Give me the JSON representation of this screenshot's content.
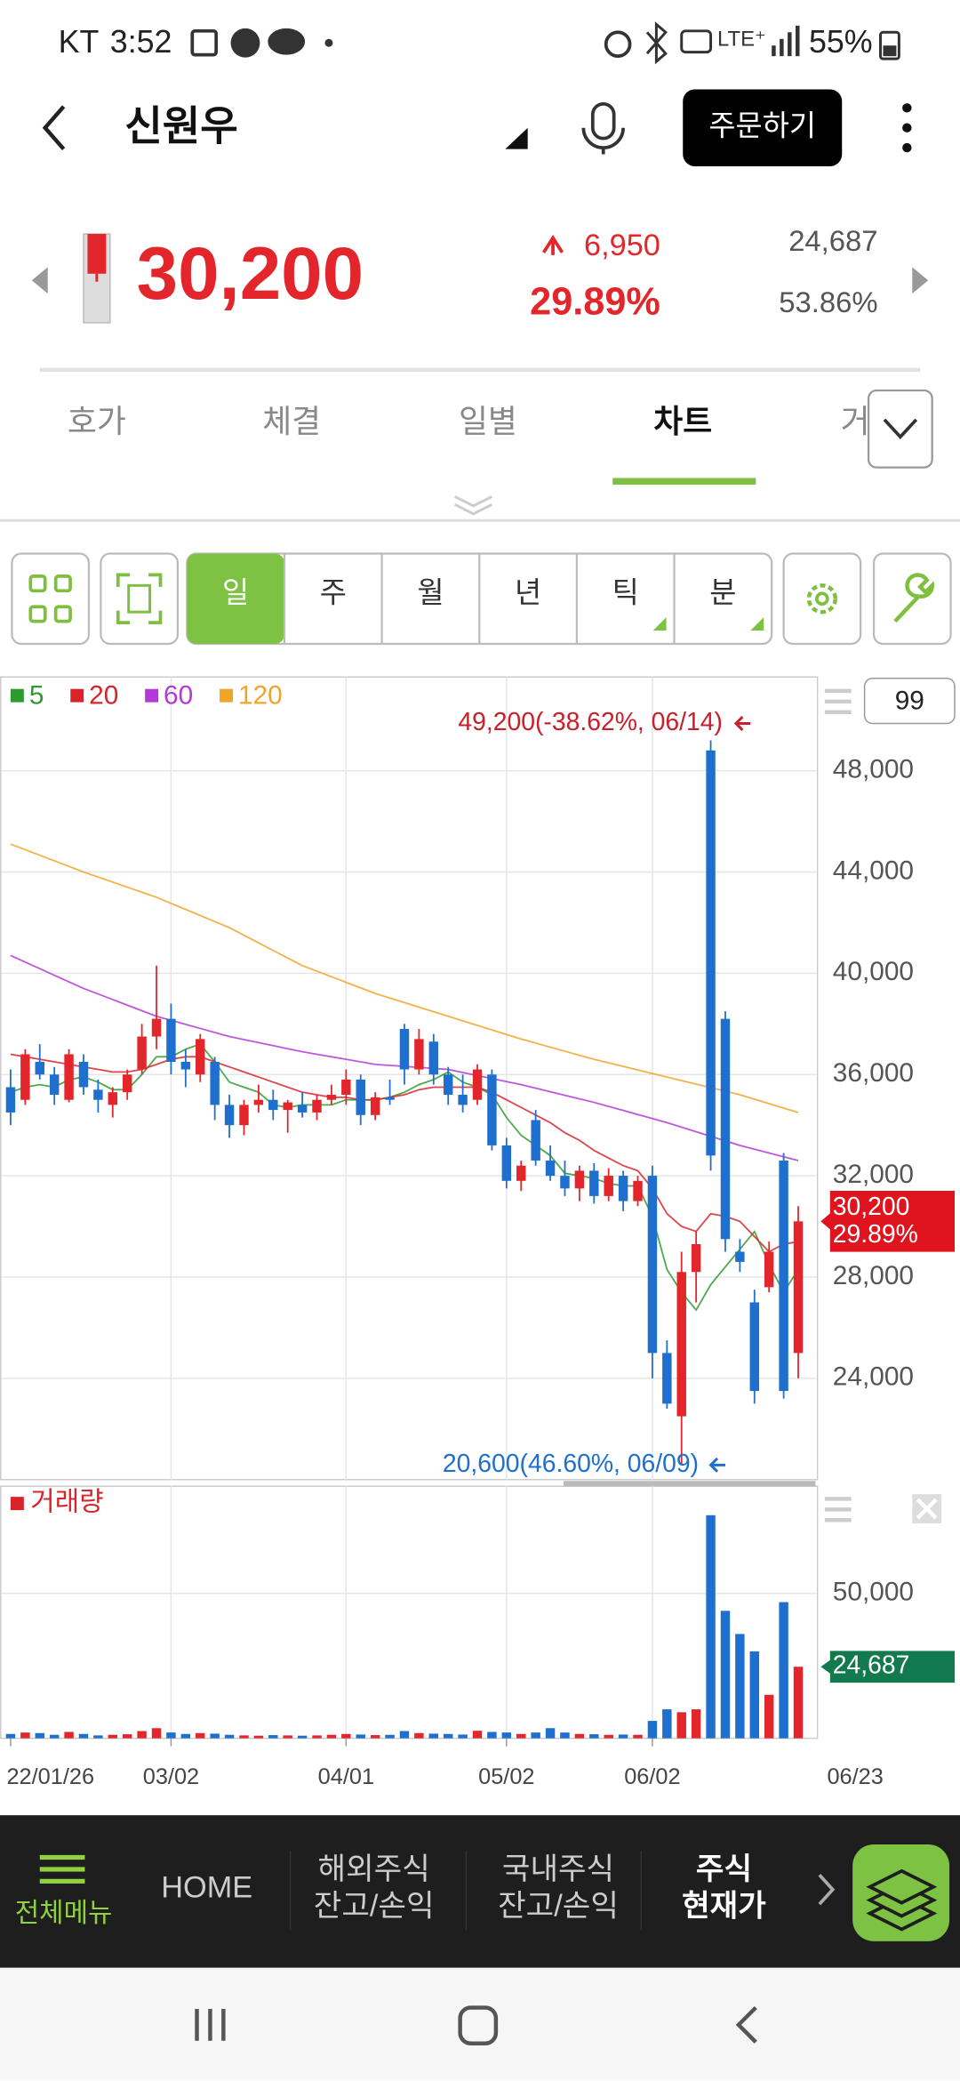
{
  "status_bar": {
    "carrier": "KT",
    "time": "3:52",
    "battery": "55%"
  },
  "header": {
    "title": "신원우",
    "order_button": "주문하기"
  },
  "quote": {
    "price": "30,200",
    "change": "6,950",
    "change_rate": "29.89%",
    "volume": "24,687",
    "volume_ratio": "53.86%"
  },
  "tabs": [
    "호가",
    "체결",
    "일별",
    "차트",
    "거"
  ],
  "periods": [
    "일",
    "주",
    "월",
    "년",
    "틱",
    "분"
  ],
  "chart_data": {
    "type": "candlestick",
    "period_count": "99",
    "max_annotation": "49,200(-38.62%, 06/14)",
    "min_annotation": "20,600(46.60%, 06/09)",
    "last_price_label": {
      "price": "30,200",
      "rate": "29.89%"
    },
    "ylim": [
      20000,
      51700
    ],
    "yticks": [
      {
        "value": 24000,
        "label": "24,000"
      },
      {
        "value": 28000,
        "label": "28,000"
      },
      {
        "value": 32000,
        "label": "32,000"
      },
      {
        "value": 36000,
        "label": "36,000"
      },
      {
        "value": 40000,
        "label": "40,000"
      },
      {
        "value": 44000,
        "label": "44,000"
      },
      {
        "value": 48000,
        "label": "48,000"
      }
    ],
    "categories": [
      "22/01/26",
      null,
      null,
      null,
      null,
      null,
      null,
      null,
      null,
      null,
      null,
      "03/02",
      null,
      null,
      null,
      null,
      null,
      null,
      null,
      null,
      null,
      null,
      null,
      "04/01",
      null,
      null,
      null,
      null,
      null,
      null,
      null,
      null,
      null,
      null,
      "05/02",
      null,
      null,
      null,
      null,
      null,
      null,
      null,
      null,
      null,
      "06/02",
      null,
      null,
      null,
      null,
      null,
      null,
      null,
      null,
      null,
      null
    ],
    "x_end_label": "06/23",
    "candles": [
      [
        35500,
        36200,
        34000,
        34500
      ],
      [
        35000,
        37000,
        34800,
        36800
      ],
      [
        36500,
        37200,
        35800,
        36000
      ],
      [
        36000,
        36300,
        34800,
        35200
      ],
      [
        35000,
        37000,
        34900,
        36800
      ],
      [
        36500,
        36800,
        35200,
        35500
      ],
      [
        35400,
        35800,
        34500,
        35000
      ],
      [
        34800,
        35500,
        34300,
        35300
      ],
      [
        35300,
        36200,
        35000,
        36000
      ],
      [
        36200,
        38000,
        36000,
        37500
      ],
      [
        37500,
        40300,
        37000,
        38200
      ],
      [
        38200,
        38800,
        36000,
        36500
      ],
      [
        36500,
        37000,
        35500,
        36200
      ],
      [
        36000,
        37600,
        35700,
        37400
      ],
      [
        36500,
        36700,
        34200,
        34800
      ],
      [
        34800,
        35200,
        33500,
        34000
      ],
      [
        34000,
        35000,
        33600,
        34800
      ],
      [
        34800,
        35600,
        34500,
        35000
      ],
      [
        35000,
        35400,
        34200,
        34600
      ],
      [
        34600,
        35000,
        33700,
        34900
      ],
      [
        34800,
        35300,
        34300,
        34500
      ],
      [
        34500,
        35200,
        34200,
        35000
      ],
      [
        35000,
        35600,
        34800,
        35200
      ],
      [
        35200,
        36200,
        34800,
        35800
      ],
      [
        35800,
        36000,
        34000,
        34400
      ],
      [
        34400,
        35300,
        34200,
        35100
      ],
      [
        35100,
        35800,
        34800,
        35000
      ],
      [
        37800,
        38000,
        35600,
        36200
      ],
      [
        36200,
        37800,
        36000,
        37400
      ],
      [
        37300,
        37600,
        35600,
        36000
      ],
      [
        36000,
        36300,
        34800,
        35200
      ],
      [
        35200,
        36000,
        34500,
        34800
      ],
      [
        35000,
        36400,
        34800,
        36200
      ],
      [
        36000,
        36200,
        33000,
        33200
      ],
      [
        33200,
        33500,
        31500,
        31800
      ],
      [
        31800,
        32600,
        31400,
        32400
      ],
      [
        34200,
        34600,
        32400,
        32600
      ],
      [
        32600,
        33200,
        31800,
        32000
      ],
      [
        32000,
        32600,
        31200,
        31500
      ],
      [
        31500,
        32400,
        31000,
        32200
      ],
      [
        32200,
        32500,
        30900,
        31200
      ],
      [
        31200,
        32300,
        31000,
        32000
      ],
      [
        32000,
        32200,
        30600,
        31000
      ],
      [
        31000,
        32000,
        30800,
        31800
      ],
      [
        32000,
        32400,
        24000,
        25000
      ],
      [
        25000,
        25500,
        22800,
        23000
      ],
      [
        22500,
        29000,
        20600,
        28200
      ],
      [
        28200,
        29800,
        27000,
        29300
      ],
      [
        48800,
        49200,
        32200,
        32800
      ],
      [
        38200,
        38500,
        29000,
        29500
      ],
      [
        29000,
        29500,
        28200,
        28600
      ],
      [
        27000,
        27500,
        23000,
        23500
      ],
      [
        27600,
        29400,
        27400,
        29000
      ],
      [
        32600,
        32900,
        23200,
        23500
      ],
      [
        25000,
        30800,
        24000,
        30200
      ]
    ],
    "up_color": "#e3262b",
    "down_color": "#1f6fce",
    "moving_averages": [
      {
        "name": "5",
        "color": "#2e9a2e",
        "values": [
          35300,
          35500,
          35600,
          35500,
          35800,
          35900,
          35700,
          35400,
          35400,
          36000,
          36700,
          36700,
          37000,
          37200,
          36500,
          35700,
          35500,
          35300,
          34800,
          34700,
          34800,
          34800,
          34800,
          35000,
          35000,
          35000,
          35100,
          35300,
          35600,
          35800,
          36100,
          35700,
          35500,
          35200,
          34300,
          33600,
          33200,
          32800,
          32100,
          32000,
          31900,
          31700,
          31600,
          31600,
          30400,
          28300,
          27400,
          26700,
          27700,
          28400,
          29100,
          29800,
          28500,
          27400,
          28300
        ]
      },
      {
        "name": "20",
        "color": "#d8232a",
        "values": [
          36800,
          36700,
          36600,
          36500,
          36400,
          36300,
          36200,
          36100,
          36100,
          36200,
          36400,
          36600,
          36700,
          36700,
          36500,
          36300,
          36100,
          35900,
          35700,
          35500,
          35300,
          35200,
          35100,
          35100,
          35000,
          35000,
          35100,
          35200,
          35400,
          35500,
          35500,
          35500,
          35500,
          35300,
          35000,
          34700,
          34400,
          34100,
          33700,
          33400,
          33000,
          32700,
          32400,
          32200,
          31500,
          30500,
          30000,
          29800,
          30500,
          30400,
          30200,
          29600,
          29000,
          29300,
          29400
        ]
      },
      {
        "name": "60",
        "color": "#b43ad8",
        "values": [
          40700,
          40440,
          40180,
          39920,
          39660,
          39400,
          39180,
          38960,
          38740,
          38520,
          38300,
          38140,
          37980,
          37820,
          37660,
          37500,
          37380,
          37260,
          37140,
          37020,
          36900,
          36800,
          36700,
          36600,
          36500,
          36400,
          36360,
          36320,
          36280,
          36240,
          36200,
          36080,
          35960,
          35840,
          35720,
          35600,
          35460,
          35320,
          35180,
          35040,
          34900,
          34740,
          34580,
          34420,
          34260,
          34100,
          33920,
          33740,
          33560,
          33380,
          33200,
          33050,
          32900,
          32750,
          32600
        ]
      },
      {
        "name": "120",
        "color": "#f0a52a",
        "values": [
          45100,
          44880,
          44660,
          44440,
          44220,
          44000,
          43800,
          43600,
          43400,
          43200,
          43000,
          42760,
          42520,
          42280,
          42040,
          41800,
          41500,
          41200,
          40900,
          40600,
          40300,
          40080,
          39860,
          39640,
          39420,
          39200,
          39020,
          38840,
          38660,
          38480,
          38300,
          38120,
          37940,
          37760,
          37580,
          37400,
          37240,
          37080,
          36920,
          36760,
          36600,
          36460,
          36320,
          36180,
          36040,
          35900,
          35760,
          35620,
          35480,
          35340,
          35200,
          35025,
          34850,
          34675,
          34500
        ]
      }
    ],
    "volume": {
      "name": "거래량",
      "color": "#d8232a",
      "ylim": [
        0,
        87000
      ],
      "yticks": [
        {
          "value": 50000,
          "label": "50,000"
        }
      ],
      "last_label": "24,687",
      "values": [
        1500,
        2000,
        1800,
        1200,
        2200,
        1500,
        1000,
        1200,
        1400,
        2500,
        3500,
        2000,
        1500,
        1800,
        1600,
        1200,
        1000,
        900,
        1100,
        1000,
        900,
        1000,
        1200,
        1500,
        1300,
        1100,
        1200,
        2500,
        1800,
        1600,
        1500,
        1300,
        2600,
        2200,
        2000,
        1500,
        2000,
        3500,
        2000,
        1500,
        1400,
        1200,
        1300,
        1200,
        6000,
        10000,
        9000,
        10000,
        77000,
        44000,
        36000,
        30000,
        15000,
        47000,
        24687
      ]
    }
  },
  "bottom_nav": [
    {
      "lines": [
        "전체메뉴"
      ]
    },
    {
      "lines": [
        "HOME"
      ]
    },
    {
      "lines": [
        "해외주식",
        "잔고/손익"
      ]
    },
    {
      "lines": [
        "국내주식",
        "잔고/손익"
      ]
    },
    {
      "lines": [
        "주식",
        "현재가"
      ]
    }
  ]
}
